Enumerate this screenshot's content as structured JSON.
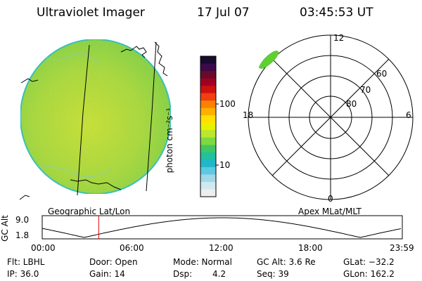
{
  "header": {
    "instrument": "Ultraviolet Imager",
    "date": "17 Jul 07",
    "time": "03:45:53 UT"
  },
  "colorbar": {
    "unit_label": "photon cm⁻²s⁻¹",
    "ticks": [
      "100",
      "10"
    ],
    "colors": [
      "#1a0a2e",
      "#3a0a4a",
      "#6a0a2a",
      "#a00020",
      "#d01010",
      "#f04010",
      "#ff8000",
      "#ffb000",
      "#ffe000",
      "#e8f000",
      "#b8e830",
      "#80d840",
      "#40c860",
      "#20c0a0",
      "#20b8c8",
      "#60c8e0",
      "#a0d8e8",
      "#d0e8f0",
      "#eeeeee"
    ]
  },
  "polar": {
    "mlt_labels": {
      "top": "12",
      "left": "18",
      "right": "6",
      "bottom": "0"
    },
    "lat_labels": [
      "60",
      "70",
      "80"
    ]
  },
  "projections": {
    "left": "Geographic Lat/Lon",
    "right": "Apex MLat/MLT"
  },
  "timeline": {
    "axis_label": "GC Alt",
    "y_ticks": [
      "9.0",
      "1.8"
    ],
    "x_ticks": [
      "00:00",
      "06:00",
      "12:00",
      "18:00",
      "23:59"
    ],
    "current_time_hours": 3.765
  },
  "status": {
    "flt": "Flt: LBHL",
    "door": "Door: Open",
    "mode": "Mode: Normal",
    "gc_alt": "GC Alt: 3.6 Re",
    "glat": "GLat: −32.2",
    "ip": "IP: 36.0",
    "gain": "Gain: 14",
    "dsp_label": "Dsp:",
    "dsp_value": "4.2",
    "seq": "Seq: 39",
    "glon": "GLon: 162.2"
  },
  "colors": {
    "disk_fill": "#b4e050",
    "disk_edge": "#40c8c8",
    "aurora": "#60d030",
    "time_marker": "#e00000"
  }
}
